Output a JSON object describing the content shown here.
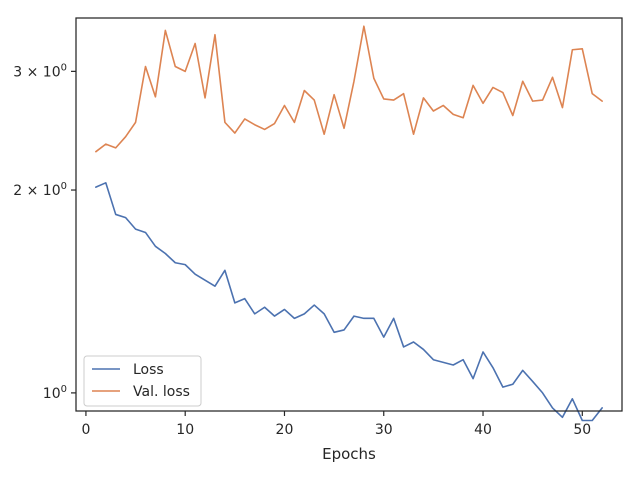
{
  "chart_data": {
    "type": "line",
    "xlabel": "Epochs",
    "ylabel": "",
    "yscale": "log",
    "xlim": [
      -1,
      54
    ],
    "ylim": [
      0.94,
      3.6
    ],
    "xticks": [
      0,
      10,
      20,
      30,
      40,
      50
    ],
    "yticks": [
      {
        "value": 1,
        "label": "10⁰",
        "base": "10",
        "exp": "0"
      },
      {
        "value": 2,
        "label": "2×10⁰",
        "base": "2 × 10",
        "exp": "0"
      },
      {
        "value": 3,
        "label": "3×10⁰",
        "base": "3 × 10",
        "exp": "0"
      }
    ],
    "grid": false,
    "legend_position": "lower-left",
    "x": [
      1,
      2,
      3,
      4,
      5,
      6,
      7,
      8,
      9,
      10,
      11,
      12,
      13,
      14,
      15,
      16,
      17,
      18,
      19,
      20,
      21,
      22,
      23,
      24,
      25,
      26,
      27,
      28,
      29,
      30,
      31,
      32,
      33,
      34,
      35,
      36,
      37,
      38,
      39,
      40,
      41,
      42,
      43,
      44,
      45,
      46,
      47,
      48,
      49,
      50,
      51,
      52
    ],
    "series": [
      {
        "name": "Loss",
        "color": "#4c72b0",
        "values": [
          2.02,
          2.05,
          1.84,
          1.82,
          1.75,
          1.73,
          1.65,
          1.61,
          1.56,
          1.55,
          1.5,
          1.47,
          1.44,
          1.52,
          1.36,
          1.38,
          1.31,
          1.34,
          1.3,
          1.33,
          1.29,
          1.31,
          1.35,
          1.31,
          1.23,
          1.24,
          1.3,
          1.29,
          1.29,
          1.21,
          1.29,
          1.17,
          1.19,
          1.16,
          1.12,
          1.11,
          1.1,
          1.12,
          1.05,
          1.15,
          1.09,
          1.02,
          1.03,
          1.08,
          1.04,
          1.0,
          0.95,
          0.92,
          0.98,
          0.91,
          0.91,
          0.95
        ]
      },
      {
        "name": "Val. loss",
        "color": "#dd8452",
        "values": [
          2.28,
          2.34,
          2.31,
          2.4,
          2.52,
          3.05,
          2.75,
          3.45,
          3.05,
          3.0,
          3.3,
          2.74,
          3.4,
          2.52,
          2.43,
          2.55,
          2.5,
          2.46,
          2.51,
          2.67,
          2.52,
          2.81,
          2.72,
          2.42,
          2.77,
          2.47,
          2.9,
          3.5,
          2.93,
          2.73,
          2.72,
          2.78,
          2.42,
          2.74,
          2.62,
          2.67,
          2.59,
          2.56,
          2.86,
          2.69,
          2.84,
          2.79,
          2.58,
          2.9,
          2.71,
          2.72,
          2.94,
          2.65,
          3.23,
          3.24,
          2.78,
          2.71
        ]
      }
    ]
  }
}
